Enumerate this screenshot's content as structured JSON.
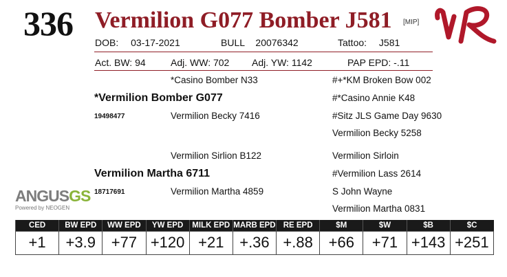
{
  "header": {
    "lot_number": "336",
    "name": "Vermilion G077 Bomber J581",
    "registry_tag": "[MIP]",
    "brand_mark": "VR"
  },
  "info": {
    "dob_label": "DOB:",
    "dob": "03-17-2021",
    "sex": "BULL",
    "registration": "20076342",
    "tattoo_label": "Tattoo:",
    "tattoo": "J581"
  },
  "weights": {
    "act_bw": "Act. BW: 94",
    "adj_ww": "Adj. WW: 702",
    "adj_yw": "Adj. YW: 1142",
    "pap_epd": "PAP EPD: -.11"
  },
  "pedigree": {
    "sire_sire": "*Casino Bomber N33",
    "sire": "*Vermilion Bomber G077",
    "sire_reg": "19498477",
    "sire_dam": "Vermilion Becky 7416",
    "ss_sire": "#+*KM Broken Bow 002",
    "ss_dam": "#*Casino Annie K48",
    "sd_sire": "#Sitz JLS Game Day 9630",
    "sd_dam": "Vermilion Becky 5258",
    "dam_sire": "Vermilion Sirlion B122",
    "dam": "Vermilion Martha 6711",
    "dam_reg": "18717691",
    "dam_dam": "Vermilion Martha 4859",
    "ds_sire": "Vermilion Sirloin",
    "ds_dam": "#Vermilion Lass 2614",
    "dd_sire": "S John Wayne",
    "dd_dam": "Vermilion Martha 0831"
  },
  "logo": {
    "main": "ANGUS",
    "accent": "GS",
    "sub": "Powered by NEOGEN"
  },
  "epds": {
    "headers": [
      "CED",
      "BW EPD",
      "WW EPD",
      "YW EPD",
      "MILK EPD",
      "MARB EPD",
      "RE EPD",
      "$M",
      "$W",
      "$B",
      "$C"
    ],
    "values": [
      "+1",
      "+3.9",
      "+77",
      "+120",
      "+21",
      "+.36",
      "+.88",
      "+66",
      "+71",
      "+143",
      "+251"
    ]
  },
  "colors": {
    "name": "#8f1d26",
    "brand": "#b0182a",
    "logo_gray": "#7d7d7d",
    "logo_green": "#8ab43a",
    "header_bg": "#1a1a1a"
  }
}
